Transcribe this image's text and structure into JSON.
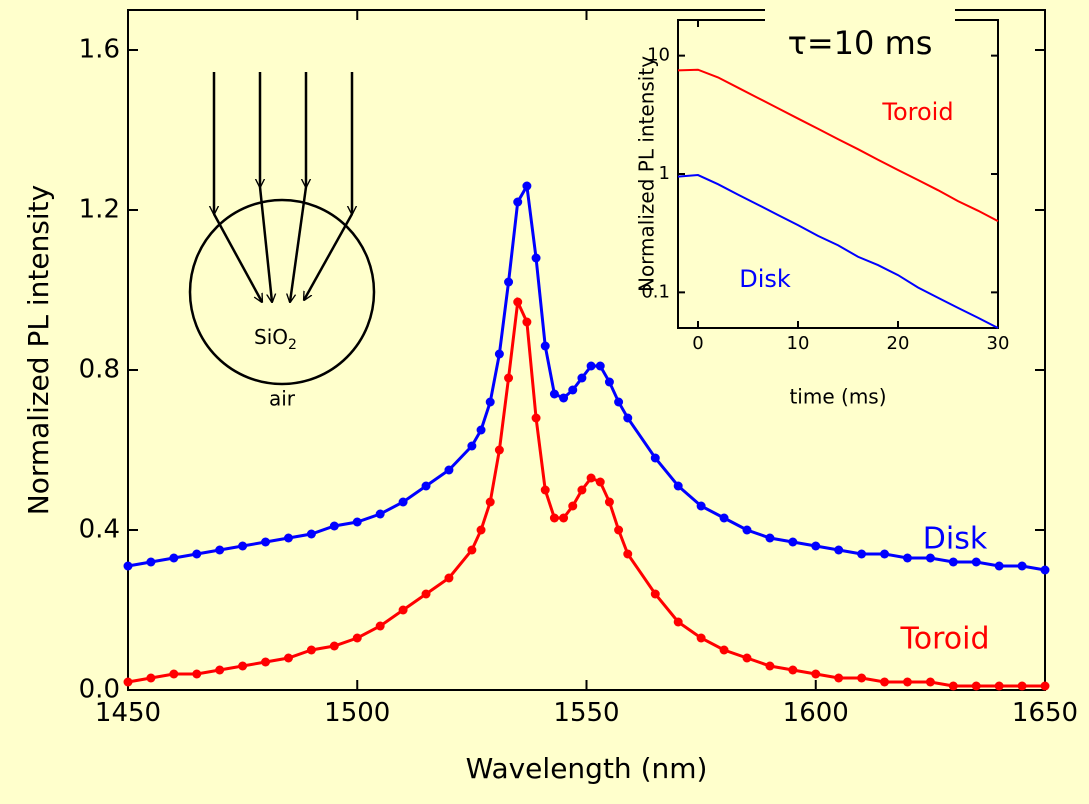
{
  "chart_data": [
    {
      "type": "line",
      "markers": true,
      "xlabel": "Wavelength (nm)",
      "ylabel": "Normalized PL intensity",
      "xlim": [
        1450,
        1650
      ],
      "ylim": [
        0,
        1.7
      ],
      "xticks": [
        1450,
        1500,
        1550,
        1600,
        1650
      ],
      "yticks": [
        {
          "value": 0,
          "label": "0.0"
        },
        0.4,
        0.8,
        1.2,
        1.6
      ],
      "x": [
        1450,
        1455,
        1460,
        1465,
        1470,
        1475,
        1480,
        1485,
        1490,
        1495,
        1500,
        1505,
        1510,
        1515,
        1520,
        1525,
        1527,
        1529,
        1531,
        1533,
        1535,
        1537,
        1539,
        1541,
        1543,
        1545,
        1547,
        1549,
        1551,
        1553,
        1555,
        1557,
        1559,
        1565,
        1570,
        1575,
        1580,
        1585,
        1590,
        1595,
        1600,
        1605,
        1610,
        1615,
        1620,
        1625,
        1630,
        1635,
        1640,
        1645,
        1650
      ],
      "series": [
        {
          "name": "Disk",
          "color": "#0000ff",
          "values": [
            0.31,
            0.32,
            0.33,
            0.34,
            0.35,
            0.36,
            0.37,
            0.38,
            0.39,
            0.41,
            0.42,
            0.44,
            0.47,
            0.51,
            0.55,
            0.61,
            0.65,
            0.72,
            0.84,
            1.02,
            1.22,
            1.26,
            1.08,
            0.86,
            0.74,
            0.73,
            0.75,
            0.78,
            0.81,
            0.81,
            0.77,
            0.72,
            0.68,
            0.58,
            0.51,
            0.46,
            0.43,
            0.4,
            0.38,
            0.37,
            0.36,
            0.35,
            0.34,
            0.34,
            0.33,
            0.33,
            0.32,
            0.32,
            0.31,
            0.31,
            0.3
          ]
        },
        {
          "name": "Toroid",
          "color": "#ff0000",
          "values": [
            0.02,
            0.03,
            0.04,
            0.04,
            0.05,
            0.06,
            0.07,
            0.08,
            0.1,
            0.11,
            0.13,
            0.16,
            0.2,
            0.24,
            0.28,
            0.35,
            0.4,
            0.47,
            0.6,
            0.78,
            0.97,
            0.92,
            0.68,
            0.5,
            0.43,
            0.43,
            0.46,
            0.5,
            0.53,
            0.52,
            0.47,
            0.4,
            0.34,
            0.24,
            0.17,
            0.13,
            0.1,
            0.08,
            0.06,
            0.05,
            0.04,
            0.03,
            0.03,
            0.02,
            0.02,
            0.02,
            0.01,
            0.01,
            0.01,
            0.01,
            0.01
          ]
        }
      ],
      "diagram": {
        "material": "SiO",
        "subscript": "2",
        "outside": "air"
      }
    },
    {
      "type": "line",
      "log_y": true,
      "title": "τ=10 ms",
      "xlabel": "time (ms)",
      "ylabel": "Normalized PL intensity",
      "xlim": [
        -2,
        30
      ],
      "ylim": [
        0.05,
        20
      ],
      "xticks": [
        0,
        10,
        20,
        30
      ],
      "yticks": [
        0.1,
        1,
        10
      ],
      "x": [
        -2,
        0,
        2,
        4,
        6,
        8,
        10,
        12,
        14,
        16,
        18,
        20,
        22,
        24,
        26,
        28,
        30
      ],
      "series": [
        {
          "name": "Toroid",
          "color": "#ff0000",
          "values": [
            7.5,
            7.6,
            6.55,
            5.36,
            4.39,
            3.59,
            2.94,
            2.41,
            1.97,
            1.62,
            1.32,
            1.08,
            0.89,
            0.73,
            0.59,
            0.49,
            0.4
          ]
        },
        {
          "name": "Disk",
          "color": "#0000ff",
          "values": [
            0.95,
            0.98,
            0.82,
            0.67,
            0.55,
            0.45,
            0.37,
            0.3,
            0.25,
            0.2,
            0.17,
            0.14,
            0.11,
            0.09,
            0.074,
            0.061,
            0.05
          ]
        }
      ]
    }
  ]
}
